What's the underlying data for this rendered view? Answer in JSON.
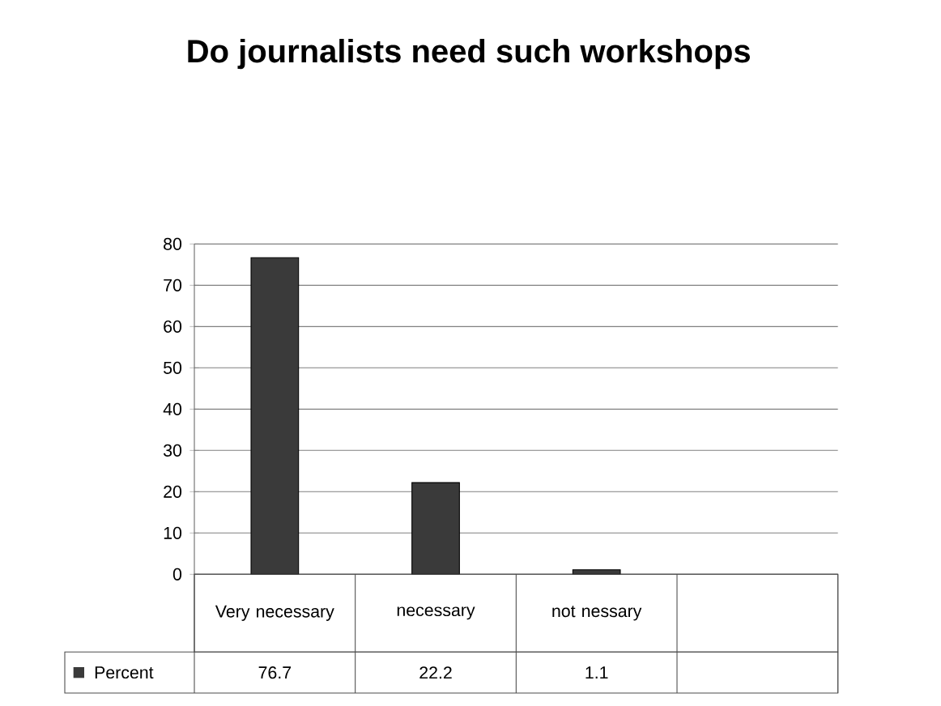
{
  "chart_data": {
    "type": "bar",
    "title": "Do journalists need such workshops",
    "categories": [
      "Very necessary",
      "necessary",
      "not nessary",
      null
    ],
    "series": [
      {
        "name": "Percent",
        "color": "#3a3a3a",
        "values": [
          76.7,
          22.2,
          1.1,
          null
        ]
      }
    ],
    "ylim": [
      0,
      80
    ],
    "yticks": [
      0,
      10,
      20,
      30,
      40,
      50,
      60,
      70,
      80
    ],
    "grid": "y",
    "legend": "bottom",
    "data_labels": true
  }
}
